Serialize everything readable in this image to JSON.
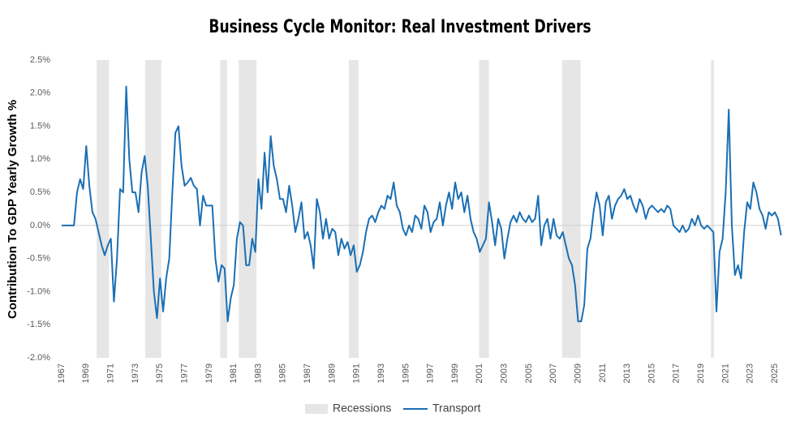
{
  "chart_data": {
    "type": "line",
    "title": "Business Cycle Monitor: Real Investment Drivers",
    "ylabel": "Contribution To GDP Yearly Growth %",
    "xlim": [
      1967,
      2025.75
    ],
    "ylim": [
      -2.0,
      2.5
    ],
    "xticks": [
      1967,
      1969,
      1971,
      1973,
      1975,
      1977,
      1979,
      1981,
      1983,
      1985,
      1987,
      1989,
      1991,
      1993,
      1995,
      1997,
      1999,
      2001,
      2003,
      2005,
      2007,
      2009,
      2011,
      2013,
      2015,
      2017,
      2019,
      2021,
      2023,
      2025
    ],
    "yticks": [
      {
        "value": -2.0,
        "label": "-2.0%"
      },
      {
        "value": -1.5,
        "label": "-1.5%"
      },
      {
        "value": -1.0,
        "label": "-1.0%"
      },
      {
        "value": -0.5,
        "label": "-0.5%"
      },
      {
        "value": 0,
        "label": "0.0%"
      },
      {
        "value": 0.5,
        "label": "0.5%"
      },
      {
        "value": 1.0,
        "label": "1.0%"
      },
      {
        "value": 1.5,
        "label": "1.5%"
      },
      {
        "value": 2.0,
        "label": "2.0%"
      },
      {
        "value": 2.5,
        "label": "2.5%"
      }
    ],
    "recessions": {
      "name": "Recessions",
      "color": "#e6e6e6",
      "ranges": [
        [
          1969.85,
          1970.85
        ],
        [
          1973.8,
          1975.1
        ],
        [
          1979.9,
          1980.45
        ],
        [
          1981.4,
          1982.85
        ],
        [
          1990.35,
          1991.15
        ],
        [
          2000.95,
          2001.75
        ],
        [
          2007.7,
          2009.2
        ],
        [
          2019.8,
          2020.05
        ]
      ]
    },
    "x": [
      1967,
      1967.25,
      1967.5,
      1967.75,
      1968,
      1968.25,
      1968.5,
      1968.75,
      1969,
      1969.25,
      1969.5,
      1969.75,
      1970,
      1970.25,
      1970.5,
      1970.75,
      1971,
      1971.25,
      1971.5,
      1971.75,
      1972,
      1972.25,
      1972.5,
      1972.75,
      1973,
      1973.25,
      1973.5,
      1973.75,
      1974,
      1974.25,
      1974.5,
      1974.75,
      1975,
      1975.25,
      1975.5,
      1975.75,
      1976,
      1976.25,
      1976.5,
      1976.75,
      1977,
      1977.25,
      1977.5,
      1977.75,
      1978,
      1978.25,
      1978.5,
      1978.75,
      1979,
      1979.25,
      1979.5,
      1979.75,
      1980,
      1980.25,
      1980.5,
      1980.75,
      1981,
      1981.25,
      1981.5,
      1981.75,
      1982,
      1982.25,
      1982.5,
      1982.75,
      1983,
      1983.25,
      1983.5,
      1983.75,
      1984,
      1984.25,
      1984.5,
      1984.75,
      1985,
      1985.25,
      1985.5,
      1985.75,
      1986,
      1986.25,
      1986.5,
      1986.75,
      1987,
      1987.25,
      1987.5,
      1987.75,
      1988,
      1988.25,
      1988.5,
      1988.75,
      1989,
      1989.25,
      1989.5,
      1989.75,
      1990,
      1990.25,
      1990.5,
      1990.75,
      1991,
      1991.25,
      1991.5,
      1991.75,
      1992,
      1992.25,
      1992.5,
      1992.75,
      1993,
      1993.25,
      1993.5,
      1993.75,
      1994,
      1994.25,
      1994.5,
      1994.75,
      1995,
      1995.25,
      1995.5,
      1995.75,
      1996,
      1996.25,
      1996.5,
      1996.75,
      1997,
      1997.25,
      1997.5,
      1997.75,
      1998,
      1998.25,
      1998.5,
      1998.75,
      1999,
      1999.25,
      1999.5,
      1999.75,
      2000,
      2000.25,
      2000.5,
      2000.75,
      2001,
      2001.25,
      2001.5,
      2001.75,
      2002,
      2002.25,
      2002.5,
      2002.75,
      2003,
      2003.25,
      2003.5,
      2003.75,
      2004,
      2004.25,
      2004.5,
      2004.75,
      2005,
      2005.25,
      2005.5,
      2005.75,
      2006,
      2006.25,
      2006.5,
      2006.75,
      2007,
      2007.25,
      2007.5,
      2007.75,
      2008,
      2008.25,
      2008.5,
      2008.75,
      2009,
      2009.25,
      2009.5,
      2009.75,
      2010,
      2010.25,
      2010.5,
      2010.75,
      2011,
      2011.25,
      2011.5,
      2011.75,
      2012,
      2012.25,
      2012.5,
      2012.75,
      2013,
      2013.25,
      2013.5,
      2013.75,
      2014,
      2014.25,
      2014.5,
      2014.75,
      2015,
      2015.25,
      2015.5,
      2015.75,
      2016,
      2016.25,
      2016.5,
      2016.75,
      2017,
      2017.25,
      2017.5,
      2017.75,
      2018,
      2018.25,
      2018.5,
      2018.75,
      2019,
      2019.25,
      2019.5,
      2019.75,
      2020,
      2020.25,
      2020.5,
      2020.75,
      2021,
      2021.25,
      2021.5,
      2021.75,
      2022,
      2022.25,
      2022.5,
      2022.75,
      2023,
      2023.25,
      2023.5,
      2023.75,
      2024,
      2024.25,
      2024.5,
      2024.75,
      2025,
      2025.25,
      2025.5
    ],
    "series": [
      {
        "name": "Transport",
        "color": "#1a6fb5",
        "values": [
          0,
          0,
          0,
          0,
          0.0,
          0.5,
          0.7,
          0.55,
          1.2,
          0.6,
          0.2,
          0.1,
          -0.1,
          -0.3,
          -0.45,
          -0.3,
          -0.2,
          -1.15,
          -0.5,
          0.55,
          0.5,
          2.1,
          1.0,
          0.5,
          0.5,
          0.2,
          0.8,
          1.05,
          0.6,
          -0.2,
          -1.0,
          -1.4,
          -0.8,
          -1.3,
          -0.8,
          -0.5,
          0.5,
          1.4,
          1.5,
          0.9,
          0.6,
          0.65,
          0.72,
          0.6,
          0.55,
          0.0,
          0.45,
          0.3,
          0.3,
          0.3,
          -0.5,
          -0.85,
          -0.6,
          -0.65,
          -1.45,
          -1.1,
          -0.9,
          -0.2,
          0.05,
          0.0,
          -0.6,
          -0.6,
          -0.2,
          -0.4,
          0.7,
          0.25,
          1.1,
          0.5,
          1.35,
          0.9,
          0.7,
          0.4,
          0.4,
          0.2,
          0.6,
          0.3,
          -0.1,
          0.1,
          0.35,
          -0.2,
          -0.1,
          -0.3,
          -0.65,
          0.4,
          0.2,
          -0.2,
          0.1,
          -0.2,
          -0.05,
          -0.1,
          -0.45,
          -0.2,
          -0.35,
          -0.25,
          -0.45,
          -0.3,
          -0.7,
          -0.6,
          -0.4,
          -0.1,
          0.1,
          0.15,
          0.05,
          0.2,
          0.3,
          0.25,
          0.45,
          0.4,
          0.65,
          0.3,
          0.2,
          -0.05,
          -0.15,
          0.0,
          -0.1,
          0.15,
          0.1,
          -0.05,
          0.3,
          0.2,
          -0.1,
          0.05,
          0.1,
          0.35,
          0.0,
          0.3,
          0.5,
          0.25,
          0.65,
          0.4,
          0.5,
          0.2,
          0.45,
          0.1,
          -0.1,
          -0.2,
          -0.4,
          -0.3,
          -0.2,
          0.35,
          0.05,
          -0.3,
          0.1,
          -0.05,
          -0.5,
          -0.2,
          0.05,
          0.15,
          0.05,
          0.2,
          0.1,
          0.05,
          0.15,
          0.05,
          0.1,
          0.45,
          -0.3,
          0.0,
          0.1,
          -0.2,
          0.1,
          -0.15,
          -0.2,
          -0.1,
          -0.3,
          -0.5,
          -0.6,
          -0.9,
          -1.45,
          -1.45,
          -1.2,
          -0.35,
          -0.2,
          0.2,
          0.5,
          0.3,
          -0.15,
          0.35,
          0.45,
          0.1,
          0.3,
          0.4,
          0.45,
          0.55,
          0.4,
          0.45,
          0.3,
          0.2,
          0.4,
          0.3,
          0.1,
          0.25,
          0.3,
          0.25,
          0.2,
          0.25,
          0.2,
          0.3,
          0.25,
          0.0,
          -0.05,
          -0.1,
          0.0,
          -0.1,
          -0.05,
          0.1,
          0.0,
          0.15,
          0.0,
          -0.05,
          0.0,
          -0.05,
          -0.1,
          -1.3,
          -0.4,
          -0.2,
          0.5,
          1.75,
          0.0,
          -0.75,
          -0.6,
          -0.8,
          -0.1,
          0.35,
          0.25,
          0.65,
          0.5,
          0.25,
          0.15,
          -0.05,
          0.2,
          0.15,
          0.2,
          0.1,
          -0.15
        ]
      }
    ]
  }
}
